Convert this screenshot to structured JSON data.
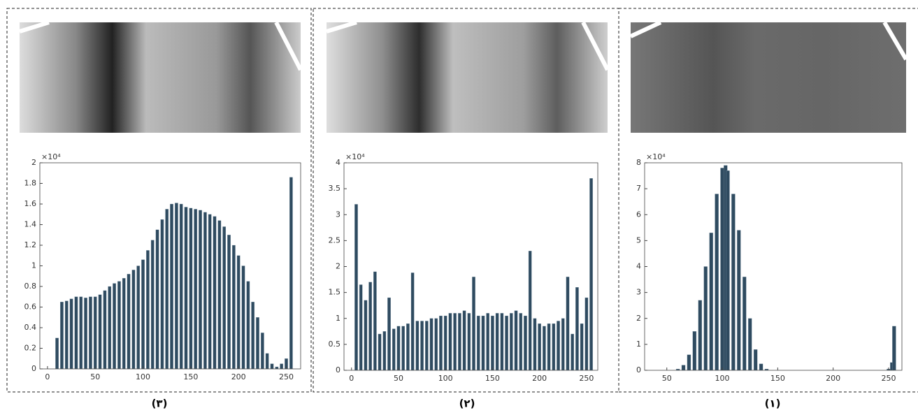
{
  "chart_data": [
    {
      "type": "bar",
      "caption": "(٣)",
      "multiplier": "×10⁴",
      "color": "#2f4b60",
      "x": [
        0,
        5,
        10,
        15,
        20,
        25,
        30,
        35,
        40,
        45,
        50,
        55,
        60,
        65,
        70,
        75,
        80,
        85,
        90,
        95,
        100,
        105,
        110,
        115,
        120,
        125,
        130,
        135,
        140,
        145,
        150,
        155,
        160,
        165,
        170,
        175,
        180,
        185,
        190,
        195,
        200,
        205,
        210,
        215,
        220,
        225,
        230,
        235,
        240,
        245,
        250,
        255
      ],
      "values": [
        0,
        0,
        0.3,
        0.65,
        0.66,
        0.68,
        0.7,
        0.7,
        0.69,
        0.7,
        0.7,
        0.72,
        0.76,
        0.8,
        0.83,
        0.85,
        0.88,
        0.92,
        0.96,
        1.0,
        1.06,
        1.15,
        1.25,
        1.35,
        1.45,
        1.55,
        1.6,
        1.61,
        1.6,
        1.57,
        1.56,
        1.55,
        1.54,
        1.52,
        1.5,
        1.48,
        1.44,
        1.38,
        1.3,
        1.2,
        1.1,
        1.0,
        0.85,
        0.65,
        0.5,
        0.35,
        0.15,
        0.05,
        0.02,
        0.05,
        0.1,
        1.86
      ],
      "xlim": [
        -8,
        265
      ],
      "ylim": [
        0,
        2
      ],
      "xticks": [
        0,
        50,
        100,
        150,
        200,
        250
      ],
      "yticks": [
        0,
        0.2,
        0.4,
        0.6,
        0.8,
        1,
        1.2,
        1.4,
        1.6,
        1.8,
        2
      ]
    },
    {
      "type": "bar",
      "caption": "(٢)",
      "multiplier": "×10⁴",
      "color": "#2f4b60",
      "x": [
        0,
        5,
        10,
        15,
        20,
        25,
        30,
        35,
        40,
        45,
        50,
        55,
        60,
        65,
        70,
        75,
        80,
        85,
        90,
        95,
        100,
        105,
        110,
        115,
        120,
        125,
        130,
        135,
        140,
        145,
        150,
        155,
        160,
        165,
        170,
        175,
        180,
        185,
        190,
        195,
        200,
        205,
        210,
        215,
        220,
        225,
        230,
        235,
        240,
        245,
        250,
        255
      ],
      "values": [
        0,
        3.2,
        1.65,
        1.35,
        1.7,
        1.9,
        0.7,
        0.75,
        1.4,
        0.8,
        0.85,
        0.85,
        0.9,
        1.88,
        0.95,
        0.95,
        0.95,
        1.0,
        1.0,
        1.05,
        1.05,
        1.1,
        1.1,
        1.1,
        1.15,
        1.1,
        1.8,
        1.05,
        1.05,
        1.1,
        1.05,
        1.1,
        1.1,
        1.05,
        1.1,
        1.15,
        1.1,
        1.05,
        2.3,
        1.0,
        0.9,
        0.85,
        0.9,
        0.9,
        0.95,
        1.0,
        1.8,
        0.7,
        1.6,
        0.9,
        1.4,
        3.7
      ],
      "xlim": [
        -8,
        262
      ],
      "ylim": [
        0,
        4
      ],
      "xticks": [
        0,
        50,
        100,
        150,
        200,
        250
      ],
      "yticks": [
        0,
        0.5,
        1,
        1.5,
        2,
        2.5,
        3,
        3.5,
        4
      ]
    },
    {
      "type": "bar",
      "caption": "(١)",
      "multiplier": "×10⁴",
      "color": "#2f4b60",
      "x": [
        55,
        60,
        65,
        70,
        75,
        80,
        85,
        90,
        95,
        100,
        103,
        105,
        110,
        115,
        120,
        125,
        130,
        135,
        140,
        145,
        250,
        253,
        255
      ],
      "values": [
        0,
        0.05,
        0.2,
        0.6,
        1.5,
        2.7,
        4.0,
        5.3,
        6.8,
        7.8,
        7.9,
        7.7,
        6.8,
        5.4,
        3.6,
        2.0,
        0.8,
        0.25,
        0.05,
        0,
        0.05,
        0.3,
        1.7
      ],
      "xlim": [
        30,
        262
      ],
      "ylim": [
        0,
        8
      ],
      "xticks": [
        50,
        100,
        150,
        200,
        250
      ],
      "yticks": [
        0,
        1,
        2,
        3,
        4,
        5,
        6,
        7,
        8
      ]
    }
  ]
}
